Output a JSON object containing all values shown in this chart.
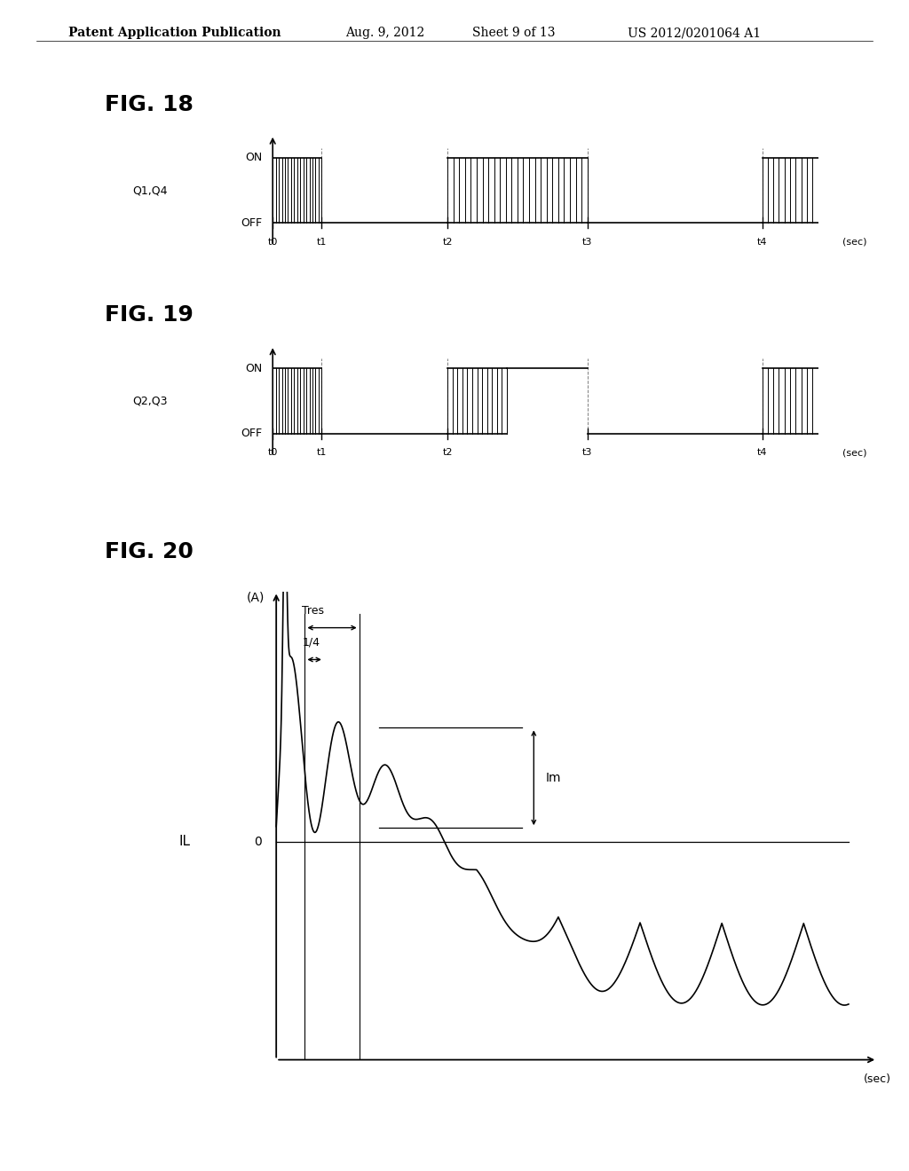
{
  "bg_color": "#ffffff",
  "header_text": "Patent Application Publication",
  "header_date": "Aug. 9, 2012",
  "header_sheet": "Sheet 9 of 13",
  "header_patent": "US 2012/0201064 A1",
  "fig18_title": "FIG. 18",
  "fig18_ylabel_on": "ON",
  "fig18_ylabel_off": "OFF",
  "fig18_label": "Q1,Q4",
  "fig18_xticks": [
    "t0",
    "t1",
    "t2",
    "t3",
    "t4"
  ],
  "fig18_xlabel": "(sec)",
  "fig19_title": "FIG. 19",
  "fig19_ylabel_on": "ON",
  "fig19_ylabel_off": "OFF",
  "fig19_label": "Q2,Q3",
  "fig19_xticks": [
    "t0",
    "t1",
    "t2",
    "t3",
    "t4"
  ],
  "fig19_xlabel": "(sec)",
  "fig20_title": "FIG. 20",
  "fig20_ylabel": "(A)",
  "fig20_xlabel": "(sec)",
  "fig20_label_il": "IL",
  "fig20_label_0": "0",
  "fig20_label_tres": "Tres",
  "fig20_label_quarter": "1/4",
  "fig20_label_im": "Im"
}
